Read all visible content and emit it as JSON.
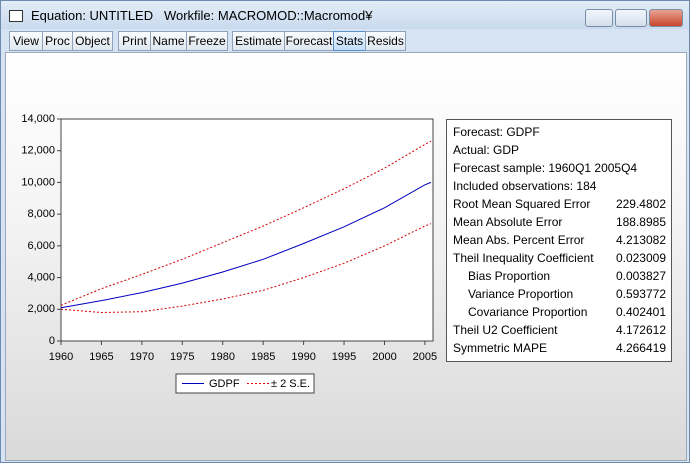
{
  "window": {
    "title": "Equation: UNTITLED   Workfile: MACROMOD::Macromod¥"
  },
  "toolbar": [
    {
      "label": "View"
    },
    {
      "label": "Proc"
    },
    {
      "label": "Object"
    },
    {
      "label": "Print"
    },
    {
      "label": "Name"
    },
    {
      "label": "Freeze"
    },
    {
      "label": "Estimate"
    },
    {
      "label": "Forecast"
    },
    {
      "label": "Stats",
      "active": true
    },
    {
      "label": "Resids"
    }
  ],
  "chart_data": {
    "type": "line",
    "x": [
      1960,
      1965,
      1970,
      1975,
      1980,
      1985,
      1990,
      1995,
      2000,
      2005,
      2005.75
    ],
    "series": [
      {
        "name": "GDPF",
        "color": "#0000c0",
        "dash": false,
        "values": [
          2100,
          2550,
          3050,
          3650,
          4350,
          5150,
          6150,
          7200,
          8400,
          9850,
          10000
        ]
      },
      {
        "name": "± 2 S.E.",
        "color": "#d00000",
        "dash": true,
        "values": [
          2250,
          3300,
          4200,
          5150,
          6200,
          7250,
          8400,
          9600,
          10900,
          12400,
          12600
        ],
        "lower": [
          2000,
          1800,
          1850,
          2200,
          2650,
          3200,
          4000,
          4900,
          6000,
          7250,
          7400
        ]
      }
    ],
    "xlim": [
      1960,
      2006
    ],
    "xticks": [
      1960,
      1965,
      1970,
      1975,
      1980,
      1985,
      1990,
      1995,
      2000,
      2005
    ],
    "ylim": [
      0,
      14000
    ],
    "yticks": [
      0,
      {
        "value": 2000,
        "label": "2,000"
      },
      {
        "value": 4000,
        "label": "4,000"
      },
      {
        "value": 6000,
        "label": "6,000"
      },
      {
        "value": 8000,
        "label": "8,000"
      },
      {
        "value": 10000,
        "label": "10,000"
      },
      {
        "value": 12000,
        "label": "12,000"
      },
      {
        "value": 14000,
        "label": "14,000"
      }
    ]
  },
  "stats": [
    {
      "label": "Forecast: GDPF"
    },
    {
      "label": "Actual: GDP"
    },
    {
      "label": "Forecast sample: 1960Q1 2005Q4"
    },
    {
      "label": "Included observations: 184"
    },
    {
      "label": "Root Mean Squared Error",
      "value": "229.4802"
    },
    {
      "label": "Mean Absolute Error",
      "value": "188.8985"
    },
    {
      "label": "Mean Abs. Percent Error",
      "value": "4.213082"
    },
    {
      "label": "Theil Inequality Coefficient",
      "value": "0.023009"
    },
    {
      "label": "Bias Proportion",
      "value": "0.003827",
      "indent": true
    },
    {
      "label": "Variance Proportion",
      "value": "0.593772",
      "indent": true
    },
    {
      "label": "Covariance Proportion",
      "value": "0.402401",
      "indent": true
    },
    {
      "label": "Theil U2 Coefficient",
      "value": "4.172612"
    },
    {
      "label": "Symmetric MAPE",
      "value": "4.266419"
    }
  ]
}
